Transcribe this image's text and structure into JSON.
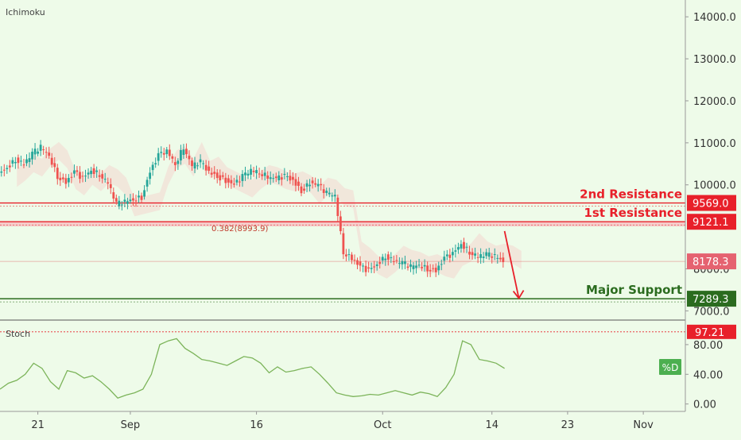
{
  "chart_data": {
    "type": "candlestick",
    "main_panel": {
      "indicator_label": "Ichimoku",
      "y_ticks": [
        14000,
        13000,
        12000,
        11000,
        10000,
        8000,
        7000
      ],
      "y_tick_labels": [
        "14000.0",
        "13000.0",
        "12000.0",
        "11000.0",
        "10000.0",
        "8000.0",
        "7000.0"
      ],
      "ylim": [
        6800,
        14400
      ],
      "x_tick_labels": [
        {
          "label": "21",
          "day": 21
        },
        {
          "label": "Sep",
          "day": 32
        },
        {
          "label": "16",
          "day": 47
        },
        {
          "label": "Oct",
          "day": 62
        },
        {
          "label": "14",
          "day": 75
        },
        {
          "label": "23",
          "day": 84
        },
        {
          "label": "Nov",
          "day": 93
        }
      ],
      "xlim": [
        16.5,
        98
      ],
      "levels": [
        {
          "label": "2nd Resistance",
          "price_label": "9569.0",
          "value": 9569.0,
          "color": "#e8202a",
          "label_color": "#e8202a"
        },
        {
          "label": "1st Resistance",
          "price_label": "9121.1",
          "value": 9121.1,
          "color": "#e8202a",
          "label_color": "#e8202a"
        },
        {
          "label": "Major Support",
          "price_label": "7289.3",
          "value": 7289.3,
          "color": "#2b6c1f",
          "label_color": "#2b6c1f"
        }
      ],
      "fib_label": "0.382(8993.9)",
      "fib_value": 8993.9,
      "current_price_label": "8178.3",
      "current_price": 8178.3,
      "price_path": [
        [
          16.5,
          10250
        ],
        [
          17.5,
          10400
        ],
        [
          18.5,
          10600
        ],
        [
          19.5,
          10500
        ],
        [
          20.5,
          10750
        ],
        [
          21.5,
          10900
        ],
        [
          22.5,
          10700
        ],
        [
          23.5,
          10200
        ],
        [
          24.5,
          10050
        ],
        [
          25.5,
          10300
        ],
        [
          26.5,
          10150
        ],
        [
          27.5,
          10350
        ],
        [
          28.5,
          10250
        ],
        [
          29.5,
          10050
        ],
        [
          30.5,
          9550
        ],
        [
          31.5,
          9600
        ],
        [
          32.5,
          9650
        ],
        [
          33.5,
          9700
        ],
        [
          34.5,
          10300
        ],
        [
          35.5,
          10700
        ],
        [
          36.5,
          10800
        ],
        [
          37.5,
          10500
        ],
        [
          38.5,
          10900
        ],
        [
          39.5,
          10450
        ],
        [
          40.5,
          10550
        ],
        [
          41.5,
          10300
        ],
        [
          42.5,
          10200
        ],
        [
          43.5,
          10100
        ],
        [
          44.5,
          10000
        ],
        [
          45.5,
          10200
        ],
        [
          46.5,
          10350
        ],
        [
          47.5,
          10300
        ],
        [
          48.5,
          10200
        ],
        [
          49.5,
          10150
        ],
        [
          50.5,
          10200
        ],
        [
          51.5,
          10100
        ],
        [
          52.5,
          9850
        ],
        [
          53.5,
          10050
        ],
        [
          54.5,
          10000
        ],
        [
          55.5,
          9800
        ],
        [
          56.5,
          9750
        ],
        [
          57.5,
          8400
        ],
        [
          58.5,
          8250
        ],
        [
          59.5,
          8050
        ],
        [
          60.5,
          7950
        ],
        [
          61.5,
          8100
        ],
        [
          62.5,
          8300
        ],
        [
          63.5,
          8200
        ],
        [
          64.5,
          8150
        ],
        [
          65.5,
          8050
        ],
        [
          66.5,
          8100
        ],
        [
          67.5,
          8000
        ],
        [
          68.5,
          7950
        ],
        [
          69.5,
          8250
        ],
        [
          70.5,
          8350
        ],
        [
          71.5,
          8600
        ],
        [
          72.5,
          8400
        ],
        [
          73.5,
          8300
        ],
        [
          74.5,
          8350
        ],
        [
          75.5,
          8300
        ],
        [
          76.5,
          8178
        ]
      ],
      "forecast_arrow": {
        "from": [
          76.5,
          8900
        ],
        "to": [
          78.2,
          7300
        ]
      }
    },
    "stoch_panel": {
      "indicator_label": "Stoch",
      "y_ticks": [
        0,
        40,
        80
      ],
      "y_tick_labels": [
        "0.00",
        "40.00",
        "80.00"
      ],
      "ylim": [
        -10,
        112
      ],
      "level_label": "97.21",
      "level_value": 97.21,
      "series_badge": "%D",
      "values": [
        [
          16.5,
          20
        ],
        [
          17.5,
          28
        ],
        [
          18.5,
          32
        ],
        [
          19.5,
          40
        ],
        [
          20.5,
          55
        ],
        [
          21.5,
          48
        ],
        [
          22.5,
          30
        ],
        [
          23.5,
          20
        ],
        [
          24.5,
          45
        ],
        [
          25.5,
          42
        ],
        [
          26.5,
          35
        ],
        [
          27.5,
          38
        ],
        [
          28.5,
          30
        ],
        [
          29.5,
          20
        ],
        [
          30.5,
          8
        ],
        [
          31.5,
          12
        ],
        [
          32.5,
          15
        ],
        [
          33.5,
          20
        ],
        [
          34.5,
          40
        ],
        [
          35.5,
          80
        ],
        [
          36.5,
          85
        ],
        [
          37.5,
          88
        ],
        [
          38.5,
          75
        ],
        [
          39.5,
          68
        ],
        [
          40.5,
          60
        ],
        [
          41.5,
          58
        ],
        [
          42.5,
          55
        ],
        [
          43.5,
          52
        ],
        [
          44.5,
          58
        ],
        [
          45.5,
          64
        ],
        [
          46.5,
          62
        ],
        [
          47.5,
          55
        ],
        [
          48.5,
          42
        ],
        [
          49.5,
          50
        ],
        [
          50.5,
          43
        ],
        [
          51.5,
          45
        ],
        [
          52.5,
          48
        ],
        [
          53.5,
          50
        ],
        [
          54.5,
          40
        ],
        [
          55.5,
          28
        ],
        [
          56.5,
          15
        ],
        [
          57.5,
          12
        ],
        [
          58.5,
          10
        ],
        [
          59.5,
          11
        ],
        [
          60.5,
          13
        ],
        [
          61.5,
          12
        ],
        [
          62.5,
          15
        ],
        [
          63.5,
          18
        ],
        [
          64.5,
          15
        ],
        [
          65.5,
          12
        ],
        [
          66.5,
          16
        ],
        [
          67.5,
          14
        ],
        [
          68.5,
          10
        ],
        [
          69.5,
          22
        ],
        [
          70.5,
          40
        ],
        [
          71.5,
          85
        ],
        [
          72.5,
          80
        ],
        [
          73.5,
          60
        ],
        [
          74.5,
          58
        ],
        [
          75.5,
          55
        ],
        [
          76.5,
          48
        ]
      ]
    },
    "colors": {
      "up": "#26a69a",
      "down": "#ef5350",
      "stoch_line": "#7cb45a",
      "cloud": "#f5c3c3",
      "background": "#eefbe9"
    },
    "grid": false,
    "legend": "none"
  }
}
